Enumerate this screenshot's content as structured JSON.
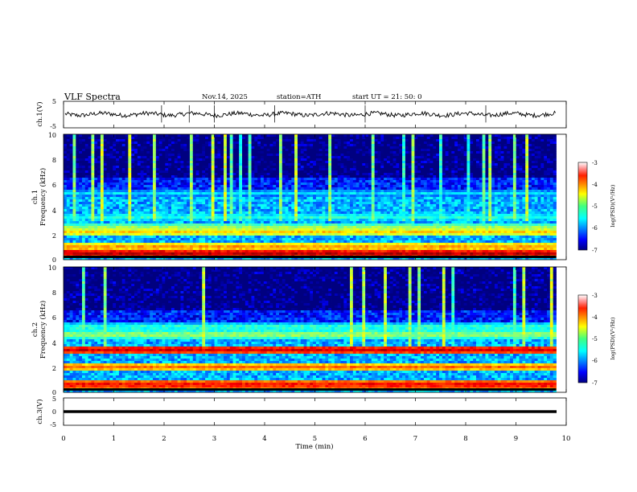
{
  "header": {
    "title": "VLF  Spectra",
    "date": "Nov.14, 2025",
    "station": "station=ATH",
    "start": "start  UT  =   21: 50: 0"
  },
  "chart_data": [
    {
      "type": "line",
      "panel": "ch1-waveform",
      "ylabel": "ch.1(V)",
      "ylim": [
        -5,
        5
      ],
      "yticks": [
        "5",
        "-5"
      ],
      "x_range_min": [
        0,
        9.8
      ],
      "baseline_v": 0.1,
      "spike_times_min": [
        1.95,
        2.5,
        3.0,
        4.2,
        6.0,
        8.4
      ],
      "series": [
        {
          "name": "ch.1",
          "description": "noisy waveform near 0 V"
        }
      ]
    },
    {
      "type": "heatmap",
      "panel": "ch1-spectrogram",
      "ylabel_top": "ch.1",
      "ylabel": "Frequency (kHz)",
      "ylim": [
        0,
        10
      ],
      "yticks": [
        "0",
        "2",
        "4",
        "6",
        "8",
        "10"
      ],
      "colorbar": {
        "label": "log(PSD)(V²/Hz)",
        "range": [
          -7,
          -3
        ],
        "ticks": [
          "-3",
          "-4",
          "-5",
          "-6",
          "-7"
        ]
      },
      "bands_khz": [
        {
          "f": 0.5,
          "level": -3.2
        },
        {
          "f": 1.0,
          "level": -4.0
        },
        {
          "f": 2.2,
          "level": -4.3
        },
        {
          "f": 2.6,
          "level": -4.9
        },
        {
          "f": 3.4,
          "level": -5.3
        },
        {
          "f": 5.3,
          "level": -5.6
        }
      ]
    },
    {
      "type": "heatmap",
      "panel": "ch2-spectrogram",
      "ylabel_top": "ch.2",
      "ylabel": "Frequency (kHz)",
      "ylim": [
        0,
        10
      ],
      "yticks": [
        "0",
        "2",
        "4",
        "6",
        "8",
        "10"
      ],
      "colorbar": {
        "label": "log(PSD)(V²/Hz)",
        "range": [
          -7,
          -3
        ],
        "ticks": [
          "-3",
          "-4",
          "-5",
          "-6",
          "-7"
        ]
      },
      "bands_khz": [
        {
          "f": 0.6,
          "level": -3.4
        },
        {
          "f": 2.0,
          "level": -3.9
        },
        {
          "f": 3.4,
          "level": -3.3
        },
        {
          "f": 4.6,
          "level": -4.8
        },
        {
          "f": 5.2,
          "level": -5.2
        }
      ]
    },
    {
      "type": "line",
      "panel": "ch3-waveform",
      "ylabel": "ch.3(V)",
      "ylim": [
        -5,
        5
      ],
      "yticks": [
        "5",
        "0",
        "-5"
      ],
      "x_range_min": [
        0,
        9.8
      ],
      "baseline_v": 0,
      "series": [
        {
          "name": "ch.3",
          "description": "flat thick line at 0 V"
        }
      ]
    }
  ],
  "xaxis": {
    "label": "Time (min)",
    "range": [
      0,
      10
    ],
    "ticks": [
      "0",
      "1",
      "2",
      "3",
      "4",
      "5",
      "6",
      "7",
      "8",
      "9",
      "10"
    ]
  }
}
